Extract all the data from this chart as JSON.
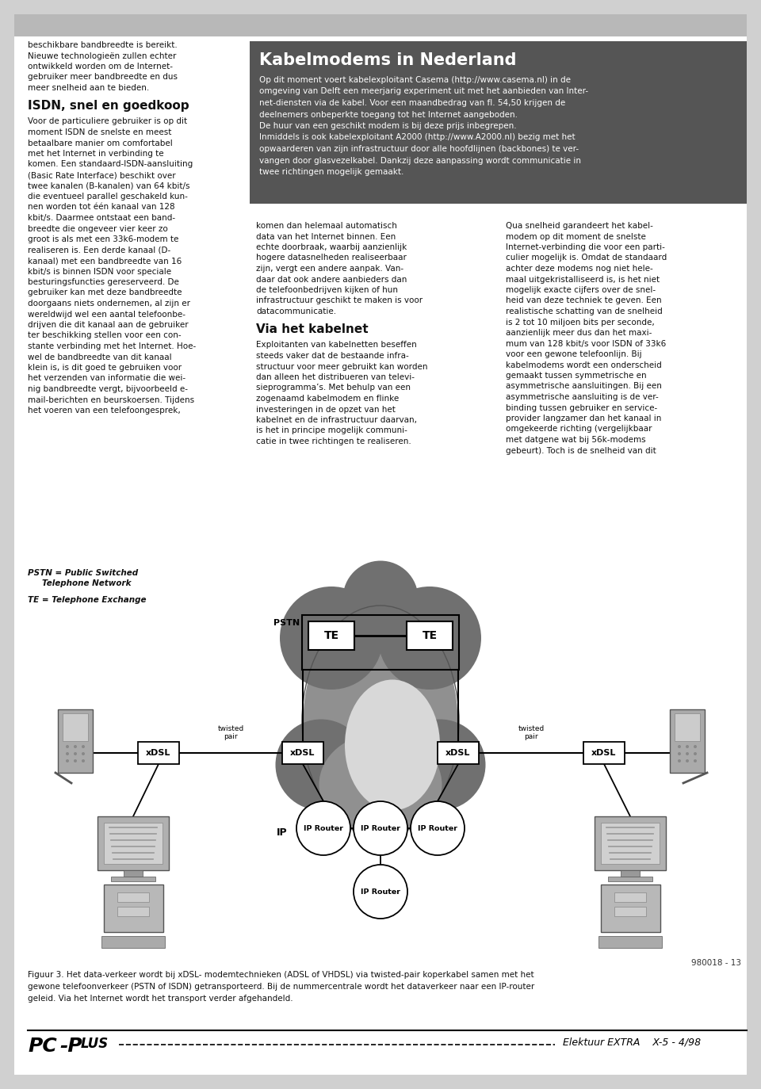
{
  "page_bg": "#d0d0d0",
  "header_color": "#b8b8b8",
  "dark_box_color": "#555555",
  "white": "#ffffff",
  "black": "#000000",
  "text_dark": "#111111",
  "cloud_dark": "#707070",
  "cloud_mid": "#909090",
  "cloud_light": "#c0c0c0",
  "cloud_inner": "#d8d8d8",
  "col1_lines": [
    {
      "text": "beschikbare bandbreedte is bereikt.",
      "bold": false
    },
    {
      "text": "Nieuwe technologieën zullen echter",
      "bold": false
    },
    {
      "text": "ontwikkeld worden om de Internet-",
      "bold": false
    },
    {
      "text": "gebruiker meer bandbreedte en dus",
      "bold": false
    },
    {
      "text": "meer snelheid aan te bieden.",
      "bold": false
    },
    {
      "text": "",
      "bold": false
    },
    {
      "text": "ISDN, snel en goedkoop",
      "bold": true,
      "size": 11
    },
    {
      "text": "",
      "bold": false
    },
    {
      "text": "Voor de particuliere gebruiker is op dit",
      "bold": false
    },
    {
      "text": "moment ISDN de snelste en meest",
      "bold": false
    },
    {
      "text": "betaalbare manier om comfortabel",
      "bold": false
    },
    {
      "text": "met het Internet in verbinding te",
      "bold": false
    },
    {
      "text": "komen. Een standaard-ISDN-aansluiting",
      "bold": false
    },
    {
      "text": "(Basic Rate Interface) beschikt over",
      "bold": false
    },
    {
      "text": "twee kanalen (B-kanalen) van 64 kbit/s",
      "bold": false
    },
    {
      "text": "die eventueel parallel geschakeld kun-",
      "bold": false
    },
    {
      "text": "nen worden tot één kanaal van 128",
      "bold": false
    },
    {
      "text": "kbit/s. Daarmee ontstaat een band-",
      "bold": false
    },
    {
      "text": "breedte die ongeveer vier keer zo",
      "bold": false
    },
    {
      "text": "groot is als met een 33k6-modem te",
      "bold": false
    },
    {
      "text": "realiseren is. Een derde kanaal (D-",
      "bold": false
    },
    {
      "text": "kanaal) met een bandbreedte van 16",
      "bold": false
    },
    {
      "text": "kbit/s is binnen ISDN voor speciale",
      "bold": false
    },
    {
      "text": "besturingsfuncties gereserveerd. De",
      "bold": false
    },
    {
      "text": "gebruiker kan met deze bandbreedte",
      "bold": false
    },
    {
      "text": "doorgaans niets ondernemen, al zijn er",
      "bold": false
    },
    {
      "text": "wereldwijd wel een aantal telefoonbe-",
      "bold": false
    },
    {
      "text": "drijven die dit kanaal aan de gebruiker",
      "bold": false
    },
    {
      "text": "ter beschikking stellen voor een con-",
      "bold": false
    },
    {
      "text": "stante verbinding met het Internet. Hoe-",
      "bold": false
    },
    {
      "text": "wel de bandbreedte van dit kanaal",
      "bold": false
    },
    {
      "text": "klein is, is dit goed te gebruiken voor",
      "bold": false
    },
    {
      "text": "het verzenden van informatie die wei-",
      "bold": false
    },
    {
      "text": "nig bandbreedte vergt, bijvoorbeeld e-",
      "bold": false
    },
    {
      "text": "mail-berichten en beurskoersen. Tijdens",
      "bold": false
    },
    {
      "text": "het voeren van een telefoongesprek,",
      "bold": false
    }
  ],
  "col2_lines": [
    {
      "text": "komen dan helemaal automatisch",
      "bold": false
    },
    {
      "text": "data van het Internet binnen. Een",
      "bold": false
    },
    {
      "text": "echte doorbraak, waarbij aanzienlijk",
      "bold": false
    },
    {
      "text": "hogere datasnelheden realiseerbaar",
      "bold": false
    },
    {
      "text": "zijn, vergt een andere aanpak. Van-",
      "bold": false
    },
    {
      "text": "daar dat ook andere aanbieders dan",
      "bold": false
    },
    {
      "text": "de telefoonbedrijven kijken of hun",
      "bold": false
    },
    {
      "text": "infrastructuur geschikt te maken is voor",
      "bold": false
    },
    {
      "text": "datacommunicatie.",
      "bold": false
    },
    {
      "text": "",
      "bold": false
    },
    {
      "text": "Via het kabelnet",
      "bold": true,
      "size": 11
    },
    {
      "text": "",
      "bold": false
    },
    {
      "text": "Exploitanten van kabelnetten beseffen",
      "bold": false
    },
    {
      "text": "steeds vaker dat de bestaande infra-",
      "bold": false
    },
    {
      "text": "structuur voor meer gebruikt kan worden",
      "bold": false
    },
    {
      "text": "dan alleen het distribueren van televi-",
      "bold": false
    },
    {
      "text": "sieprogramma’s. Met behulp van een",
      "bold": false
    },
    {
      "text": "zogenaamd kabelmodem en flinke",
      "bold": false
    },
    {
      "text": "investeringen in de opzet van het",
      "bold": false
    },
    {
      "text": "kabelnet en de infrastructuur daarvan,",
      "bold": false
    },
    {
      "text": "is het in principe mogelijk communi-",
      "bold": false
    },
    {
      "text": "catie in twee richtingen te realiseren.",
      "bold": false
    }
  ],
  "col3_lines": [
    {
      "text": "Qua snelheid garandeert het kabel-",
      "bold": false
    },
    {
      "text": "modem op dit moment de snelste",
      "bold": false
    },
    {
      "text": "Internet-verbinding die voor een parti-",
      "bold": false
    },
    {
      "text": "culier mogelijk is. Omdat de standaard",
      "bold": false
    },
    {
      "text": "achter deze modems nog niet hele-",
      "bold": false
    },
    {
      "text": "maal uitgekristalliseerd is, is het niet",
      "bold": false
    },
    {
      "text": "mogelijk exacte cijfers over de snel-",
      "bold": false
    },
    {
      "text": "heid van deze techniek te geven. Een",
      "bold": false
    },
    {
      "text": "realistische schatting van de snelheid",
      "bold": false
    },
    {
      "text": "is 2 tot 10 miljoen bits per seconde,",
      "bold": false
    },
    {
      "text": "aanzienlijk meer dus dan het maxi-",
      "bold": false
    },
    {
      "text": "mum van 128 kbit/s voor ISDN of 33k6",
      "bold": false
    },
    {
      "text": "voor een gewone telefoonlijn. Bij",
      "bold": false
    },
    {
      "text": "kabelmodems wordt een onderscheid",
      "bold": false
    },
    {
      "text": "gemaakt tussen symmetrische en",
      "bold": false
    },
    {
      "text": "asymmetrische aansluitingen. Bij een",
      "bold": false
    },
    {
      "text": "asymmetrische aansluiting is de ver-",
      "bold": false
    },
    {
      "text": "binding tussen gebruiker en service-",
      "bold": false
    },
    {
      "text": "provider langzamer dan het kanaal in",
      "bold": false
    },
    {
      "text": "omgekeerde richting (vergelijkbaar",
      "bold": false
    },
    {
      "text": "met datgene wat bij 56k-modems",
      "bold": false
    },
    {
      "text": "gebeurt). Toch is de snelheid van dit",
      "bold": false
    }
  ],
  "right_box_title": "Kabelmodems in Nederland",
  "right_box_lines": [
    "Op dit moment voert kabelexploitant Casema (http://www.casema.nl) in de",
    "omgeving van Delft een meerjarig experiment uit met het aanbieden van Inter-",
    "net-diensten via de kabel. Voor een maandbedrag van fl. 54,50 krijgen de",
    "deelnemers onbeperkte toegang tot het Internet aangeboden.",
    "De huur van een geschikt modem is bij deze prijs inbegrepen.",
    "Inmiddels is ook kabelexploitant A2000 (http://www.A2000.nl) bezig met het",
    "opwaarderen van zijn infrastructuur door alle hoofdlijnen (backbones) te ver-",
    "vangen door glasvezelkabel. Dankzij deze aanpassing wordt communicatie in",
    "twee richtingen mogelijk gemaakt."
  ],
  "pstn_legend_line1": "PSTN = Public Switched",
  "pstn_legend_line2": "Telephone Network",
  "te_legend": "TE = Telephone Exchange",
  "caption_line1": "Figuur 3. Het data-verkeer wordt bij xDSL- modemtechnieken (ADSL of VHDSL) via twisted-pair koperkabel samen met het",
  "caption_line2": "gewone telefoonverkeer (PSTN of ISDN) getransporteerd. Bij de nummercentrale wordt het dataverkeer naar een IP-router",
  "caption_line3": "geleid. Via het Internet wordt het transport verder afgehandeld.",
  "page_number": "980018 - 13",
  "footer_right": "Elektuur EXTRA    X-5 - 4/98"
}
